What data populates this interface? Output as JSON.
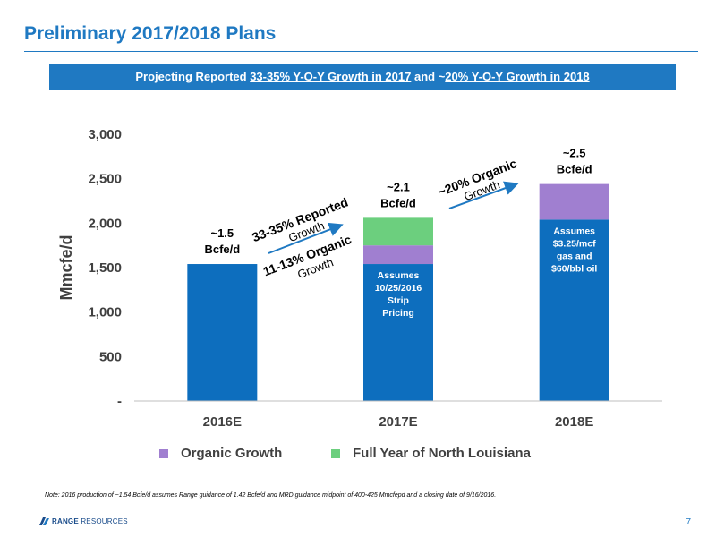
{
  "page": {
    "title": "Preliminary 2017/2018 Plans",
    "banner": {
      "prefix": "Projecting Reported ",
      "part1": "33-35% Y-O-Y Growth in 2017",
      "middle": " and ~",
      "part2": "20% Y-O-Y Growth in 2018"
    },
    "note": "Note: 2016 production of ~1.54 Bcfe/d assumes Range guidance of 1.42 Bcfe/d and MRD guidance midpoint of 400-425 Mmcfepd and a closing date of 9/16/2016.",
    "logo_bold": "RANGE",
    "logo_rest": " RESOURCES",
    "page_number": "7"
  },
  "colors": {
    "base": "#0d6ebe",
    "organic": "#a07fd0",
    "north_louisiana": "#6ccf7e",
    "accent": "#1f79c2"
  },
  "chart_data": {
    "type": "bar",
    "stacked": true,
    "categories": [
      "2016E",
      "2017E",
      "2018E"
    ],
    "series": [
      {
        "key": "base",
        "values": [
          1540,
          1540,
          2040
        ]
      },
      {
        "key": "organic",
        "name": "Organic Growth",
        "values": [
          0,
          210,
          400
        ]
      },
      {
        "key": "north_louisiana",
        "name": "Full Year of North Louisiana",
        "values": [
          0,
          310,
          0
        ]
      }
    ],
    "ylabel": "Mmcfe/d",
    "ylim": [
      0,
      3000
    ],
    "yticks": [
      0,
      500,
      1000,
      1500,
      2000,
      2500,
      3000
    ],
    "ytick_labels": [
      "-",
      "500",
      "1,000",
      "1,500",
      "2,000",
      "2,500",
      "3,000"
    ],
    "total_labels": [
      [
        "~1.5",
        "Bcfe/d"
      ],
      [
        "~2.1",
        "Bcfe/d"
      ],
      [
        "~2.5",
        "Bcfe/d"
      ]
    ],
    "bar_notes": [
      [],
      [
        "Assumes",
        "10/25/2016",
        "Strip",
        "Pricing"
      ],
      [
        "Assumes",
        "$3.25/mcf",
        "gas and",
        "$60/bbl oil"
      ]
    ],
    "growth_annotations": [
      {
        "bold": "33-35% Reported",
        "light": "Growth"
      },
      {
        "bold": "11-13% Organic",
        "light": "Growth"
      },
      {
        "bold": "~20% Organic",
        "light": "Growth"
      }
    ],
    "legend_position": "bottom",
    "grid": false
  }
}
